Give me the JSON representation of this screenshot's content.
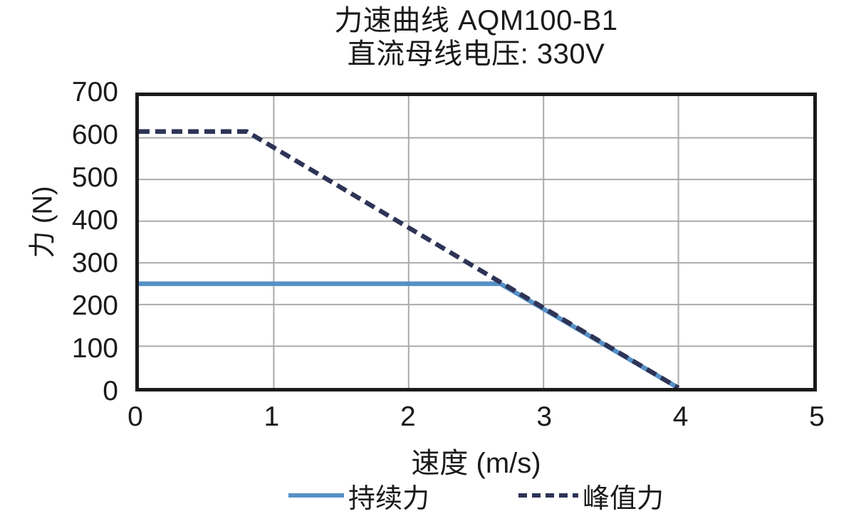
{
  "title": "力速曲线 AQM100-B1",
  "subtitle": "直流母线电压: 330V",
  "chart_data": {
    "type": "line",
    "title": "力速曲线 AQM100-B1",
    "subtitle": "直流母线电压: 330V",
    "xlabel": "速度 (m/s)",
    "ylabel": "力 (N)",
    "xlim": [
      0,
      5
    ],
    "ylim": [
      0,
      700
    ],
    "x_ticks": [
      0,
      1,
      2,
      3,
      4,
      5
    ],
    "y_ticks": [
      0,
      100,
      200,
      300,
      400,
      500,
      600,
      700
    ],
    "grid": true,
    "legend_position": "bottom",
    "series": [
      {
        "name": "持续力",
        "style": "solid",
        "color": "#5590C6",
        "points": [
          [
            0,
            250
          ],
          [
            2.68,
            250
          ],
          [
            4.0,
            0
          ]
        ]
      },
      {
        "name": "峰值力",
        "style": "dashed",
        "color": "#2E3456",
        "points": [
          [
            0,
            615
          ],
          [
            0.8,
            615
          ],
          [
            4.0,
            0
          ]
        ]
      }
    ]
  },
  "colors": {
    "grid": "#ABABAB",
    "border": "#1A1A1A",
    "text": "#1A1A1A"
  }
}
